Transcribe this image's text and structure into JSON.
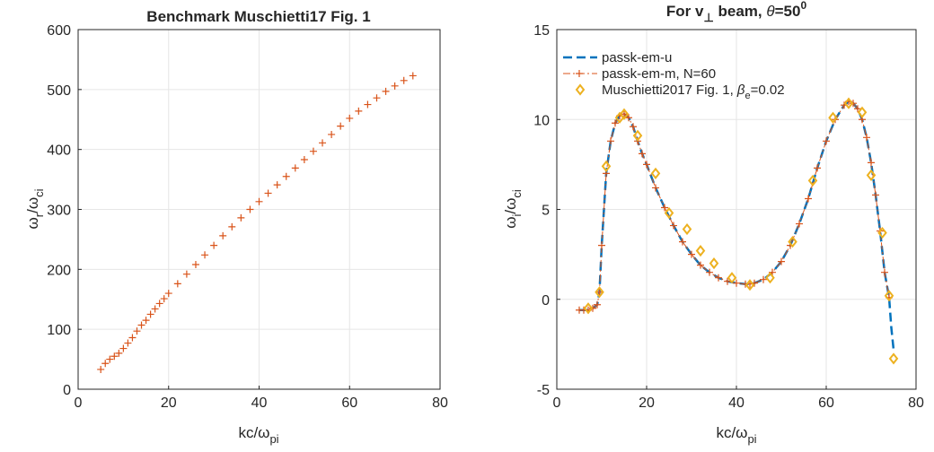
{
  "chart_data": [
    {
      "type": "line",
      "title": "Benchmark Muschietti17 Fig. 1",
      "xlabel": {
        "main": "kc/ω",
        "sub": "pi"
      },
      "ylabel": {
        "omega": "ω",
        "sub1": "r",
        "slash": "/ω",
        "sub2": "ci"
      },
      "xlim": [
        0,
        80
      ],
      "ylim": [
        0,
        600
      ],
      "xticks": [
        0,
        20,
        40,
        60,
        80
      ],
      "yticks": [
        0,
        100,
        200,
        300,
        400,
        500,
        600
      ],
      "grid": true,
      "series": [
        {
          "marker": "+",
          "color": "#d95319",
          "x": [
            5,
            6,
            7,
            8,
            9,
            10,
            11,
            12,
            13,
            14,
            15,
            16,
            17,
            18,
            19,
            20,
            22,
            24,
            26,
            28,
            30,
            32,
            34,
            36,
            38,
            40,
            42,
            44,
            46,
            48,
            50,
            52,
            54,
            56,
            58,
            60,
            62,
            64,
            66,
            68,
            70,
            72,
            74
          ],
          "values": [
            33,
            43,
            50,
            55,
            60,
            68,
            77,
            86,
            97,
            107,
            115,
            125,
            134,
            143,
            151,
            160,
            176,
            192,
            208,
            224,
            240,
            256,
            271,
            286,
            300,
            313,
            327,
            341,
            355,
            369,
            383,
            397,
            411,
            425,
            439,
            452,
            464,
            475,
            486,
            497,
            506,
            515,
            523
          ]
        }
      ]
    },
    {
      "type": "line",
      "title": {
        "pre": "For v",
        "sub": "⊥",
        "mid": " beam, ",
        "theta": "θ",
        "eq": "=50",
        "sup": "0"
      },
      "xlabel": {
        "main": "kc/ω",
        "sub": "pi"
      },
      "ylabel": {
        "omega": "ω",
        "sub1": "i",
        "slash": "/ω",
        "sub2": "ci"
      },
      "xlim": [
        0,
        80
      ],
      "ylim": [
        -5,
        15
      ],
      "xticks": [
        0,
        20,
        40,
        60,
        80
      ],
      "yticks": [
        -5,
        0,
        5,
        10,
        15
      ],
      "grid": true,
      "legend_position": "top-left",
      "series": [
        {
          "name": "passk-em-u",
          "style": "dashed",
          "color": "#0072bd",
          "x": [
            5,
            6,
            7,
            8,
            9,
            9.5,
            10,
            11,
            12,
            13,
            14,
            15,
            16,
            17,
            18,
            19,
            20,
            22,
            24,
            26,
            28,
            30,
            32,
            34,
            36,
            38,
            40,
            42,
            43,
            44,
            46,
            48,
            50,
            52,
            54,
            56,
            58,
            60,
            62,
            64,
            65,
            66,
            67,
            68,
            69,
            70,
            71,
            72,
            73,
            74,
            74.5,
            75
          ],
          "values": [
            -0.6,
            -0.6,
            -0.6,
            -0.5,
            -0.3,
            0.4,
            3,
            7,
            8.8,
            9.8,
            10.2,
            10.3,
            10.1,
            9.6,
            8.8,
            8.1,
            7.5,
            6.2,
            5.1,
            4.1,
            3.2,
            2.5,
            1.9,
            1.5,
            1.2,
            1.0,
            0.9,
            0.85,
            0.85,
            0.9,
            1.1,
            1.5,
            2.1,
            3.0,
            4.2,
            5.6,
            7.3,
            8.8,
            10.0,
            10.8,
            11.0,
            10.9,
            10.6,
            10.0,
            9.0,
            7.6,
            5.8,
            3.8,
            1.5,
            0.1,
            -1.6,
            -2.8
          ]
        },
        {
          "name": "passk-em-m, N=60",
          "style": "dash-dot",
          "marker": "+",
          "color": "#d95319",
          "x": [
            5,
            6,
            7,
            8,
            9,
            9.5,
            10,
            11,
            12,
            13,
            14,
            15,
            16,
            17,
            18,
            19,
            20,
            22,
            24,
            26,
            28,
            30,
            32,
            34,
            36,
            38,
            40,
            42,
            43,
            44,
            46,
            48,
            50,
            52,
            54,
            56,
            58,
            60,
            62,
            64,
            65,
            66,
            67,
            68,
            69,
            70,
            71,
            72,
            73,
            74
          ],
          "values": [
            -0.6,
            -0.6,
            -0.6,
            -0.5,
            -0.3,
            0.4,
            3,
            7,
            8.8,
            9.8,
            10.2,
            10.3,
            10.1,
            9.6,
            8.8,
            8.1,
            7.5,
            6.2,
            5.1,
            4.1,
            3.2,
            2.5,
            1.9,
            1.5,
            1.2,
            1.0,
            0.9,
            0.85,
            0.85,
            0.9,
            1.1,
            1.5,
            2.1,
            3.0,
            4.2,
            5.6,
            7.3,
            8.8,
            10.0,
            10.8,
            11.0,
            10.9,
            10.6,
            10.0,
            9.0,
            7.6,
            5.8,
            3.8,
            1.5,
            0.1
          ]
        },
        {
          "name": {
            "pre": "Muschietti2017 Fig. 1, ",
            "beta": "β",
            "sub": "e",
            "post": "=0.02"
          },
          "style": "markers",
          "marker": "diamond",
          "color": "#edb120",
          "x": [
            7,
            9.5,
            11,
            14,
            15,
            18,
            22,
            25,
            29,
            32,
            35,
            39,
            43,
            47.5,
            52.5,
            57,
            61.5,
            65,
            68,
            70,
            72.5,
            74,
            75
          ],
          "values": [
            -0.5,
            0.4,
            7.4,
            10.1,
            10.3,
            9.1,
            7.0,
            4.8,
            3.9,
            2.7,
            2.0,
            1.2,
            0.8,
            1.2,
            3.2,
            6.6,
            10.1,
            10.9,
            10.4,
            6.9,
            3.7,
            0.2,
            -3.3
          ]
        }
      ]
    }
  ]
}
